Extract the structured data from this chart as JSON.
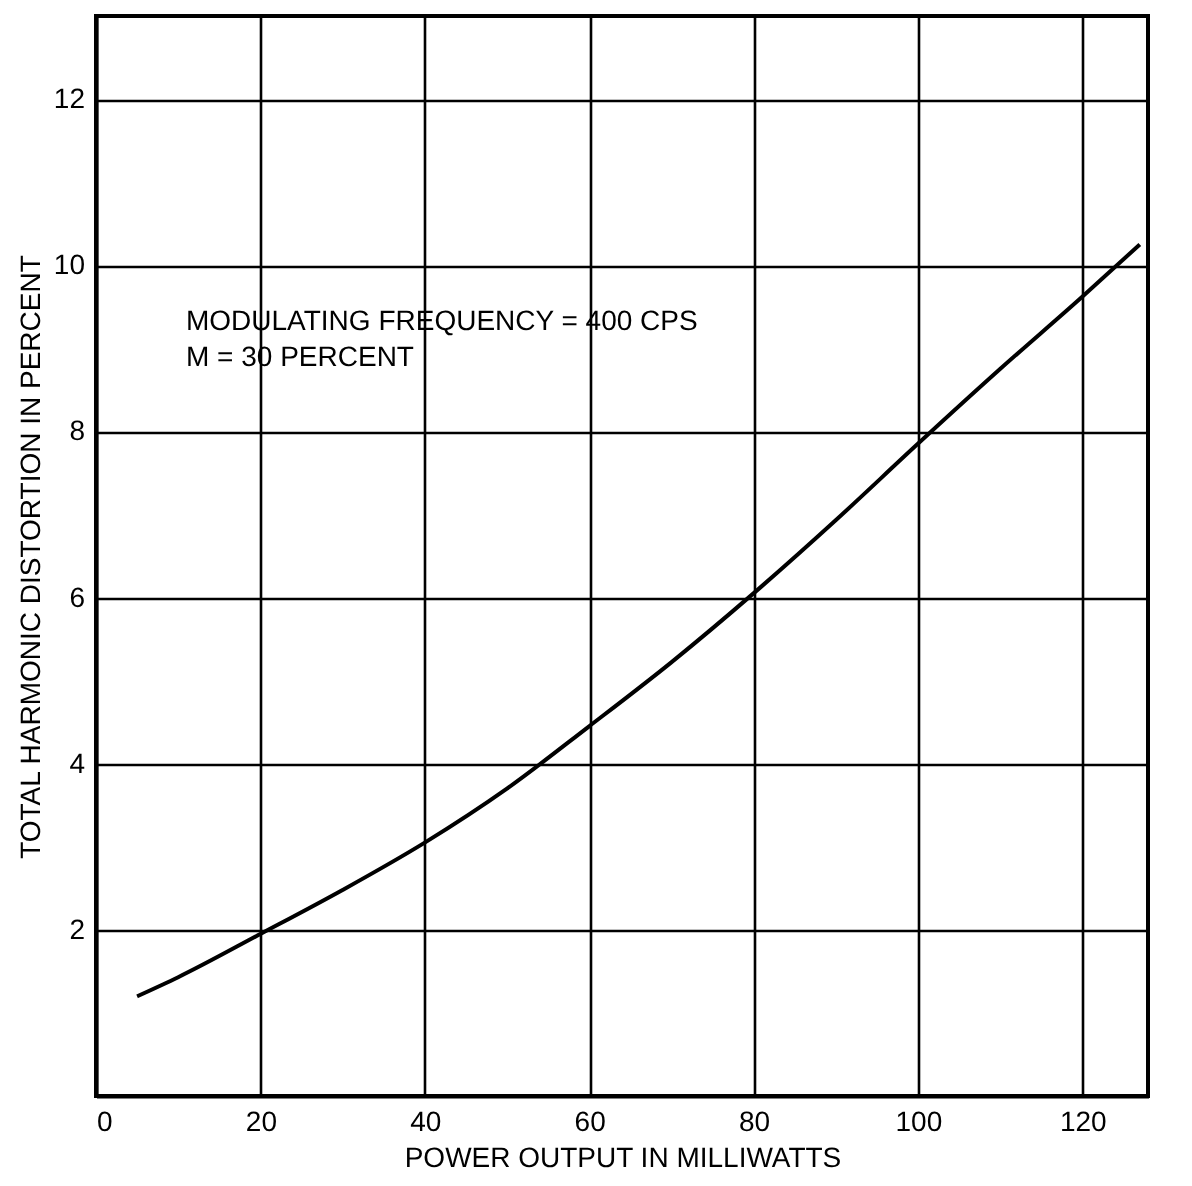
{
  "chart_data": {
    "type": "line",
    "xlabel": "POWER OUTPUT IN MILLIWATTS",
    "ylabel": "TOTAL HARMONIC DISTORTION IN PERCENT",
    "annotations": [
      "MODULATING FREQUENCY = 400 CPS",
      "M = 30 PERCENT"
    ],
    "x": [
      5,
      10,
      20,
      30,
      40,
      50,
      60,
      70,
      80,
      90,
      100,
      110,
      120,
      127
    ],
    "series": [
      {
        "color": "#000000",
        "values": [
          1.2,
          1.43,
          1.95,
          2.48,
          3.05,
          3.7,
          4.45,
          5.22,
          6.05,
          6.93,
          7.85,
          8.75,
          9.62,
          10.25
        ]
      }
    ],
    "xlim": [
      0,
      128
    ],
    "ylim": [
      0,
      13
    ],
    "xticks": [
      0,
      20,
      40,
      60,
      80,
      100,
      120
    ],
    "yticks": [
      2,
      4,
      6,
      8,
      10,
      12
    ],
    "grid": true,
    "marker": "none",
    "line_style": "solid"
  }
}
